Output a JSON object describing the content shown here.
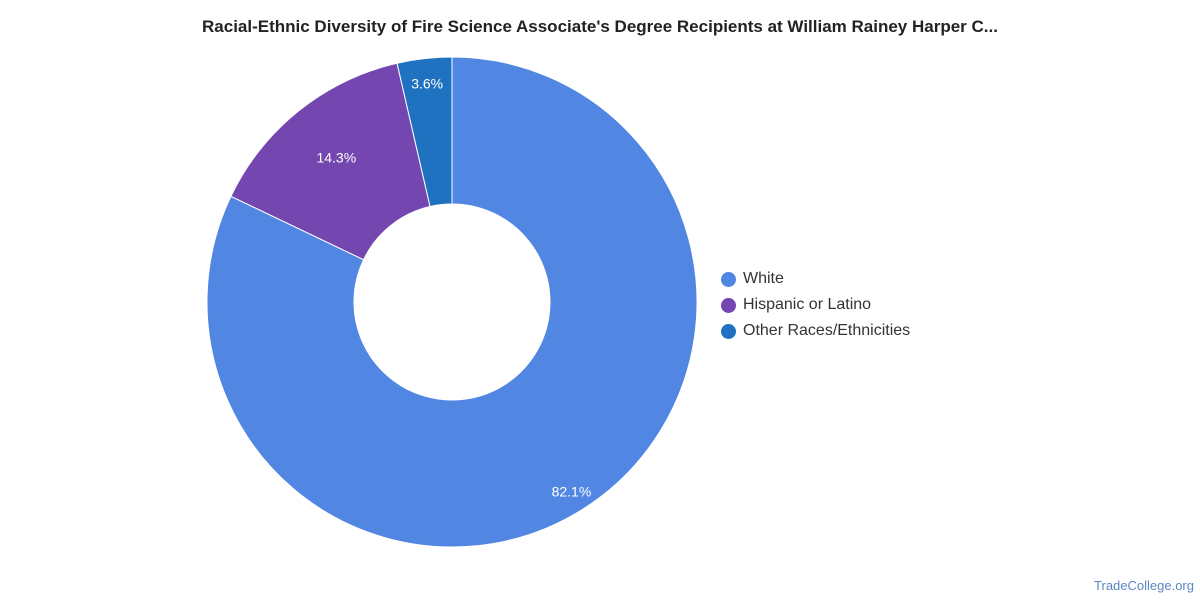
{
  "chart_data": {
    "type": "pie",
    "title": "Racial-Ethnic Diversity of Fire Science Associate's Degree Recipients at William Rainey Harper C...",
    "slices": [
      {
        "label": "White",
        "value": 82.1,
        "display": "82.1%",
        "color": "#5286e3"
      },
      {
        "label": "Hispanic or Latino",
        "value": 14.3,
        "display": "14.3%",
        "color": "#7446b0"
      },
      {
        "label": "Other Races/Ethnicities",
        "value": 3.6,
        "display": "3.6%",
        "color": "#1f72c0"
      }
    ],
    "legend_position": "right"
  },
  "credit": "TradeCollege.org"
}
